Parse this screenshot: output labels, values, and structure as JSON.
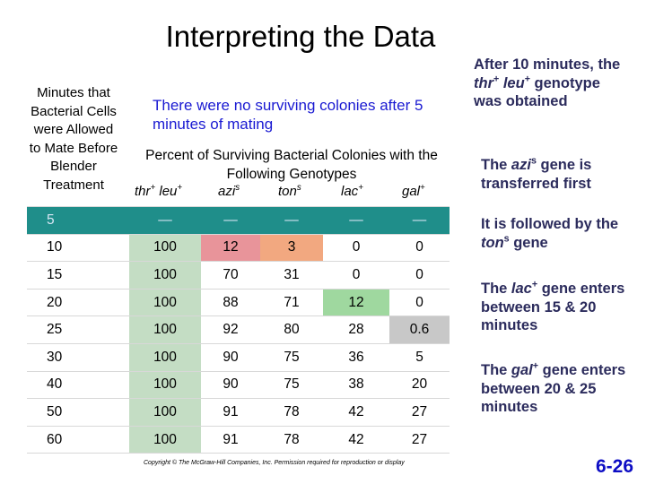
{
  "title": "Interpreting the Data",
  "row_header": "Minutes that Bacterial Cells were Allowed to Mate Before Blender Treatment",
  "no_survivors": "There were no surviving colonies after 5 minutes of mating",
  "pct_heading": "Percent of Surviving Bacterial Colonies with the Following Genotypes",
  "genotype_headers": [
    {
      "base": "thr",
      "sup1": "+",
      "base2": " leu",
      "sup2": "+"
    },
    {
      "base": "azi",
      "sup1": "s",
      "base2": "",
      "sup2": ""
    },
    {
      "base": "ton",
      "sup1": "s",
      "base2": "",
      "sup2": ""
    },
    {
      "base": "lac",
      "sup1": "+",
      "base2": "",
      "sup2": ""
    },
    {
      "base": "gal",
      "sup1": "+",
      "base2": "",
      "sup2": ""
    }
  ],
  "rows": [
    [
      "5",
      "—",
      "—",
      "—",
      "—",
      "—"
    ],
    [
      "10",
      "100",
      "12",
      "3",
      "0",
      "0"
    ],
    [
      "15",
      "100",
      "70",
      "31",
      "0",
      "0"
    ],
    [
      "20",
      "100",
      "88",
      "71",
      "12",
      "0"
    ],
    [
      "25",
      "100",
      "92",
      "80",
      "28",
      "0.6"
    ],
    [
      "30",
      "100",
      "90",
      "75",
      "36",
      "5"
    ],
    [
      "40",
      "100",
      "90",
      "75",
      "38",
      "20"
    ],
    [
      "50",
      "100",
      "91",
      "78",
      "42",
      "27"
    ],
    [
      "60",
      "100",
      "91",
      "78",
      "42",
      "27"
    ]
  ],
  "highlights": [
    {
      "row": 1,
      "col": 2,
      "color": "#e8949a"
    },
    {
      "row": 1,
      "col": 3,
      "color": "#f2a880"
    },
    {
      "row": 3,
      "col": 4,
      "color": "#9fd89f"
    },
    {
      "row": 4,
      "col": 5,
      "color": "#c8c8c8"
    }
  ],
  "notes": {
    "n0": {
      "pre": "After 10 minutes, the ",
      "g1": "thr",
      "s1": "+",
      "g2": " leu",
      "s2": "+",
      "post": " genotype was obtained"
    },
    "n1": {
      "pre": "The ",
      "g1": "azi",
      "s1": "s",
      "post": " gene is transferred first"
    },
    "n2": {
      "pre": "It is followed by the ",
      "g1": "ton",
      "s1": "s",
      "post": " gene"
    },
    "n3": {
      "pre": "The ",
      "g1": "lac",
      "s1": "+",
      "post": " gene enters between 15 & 20 minutes"
    },
    "n4": {
      "pre": "The ",
      "g1": "gal",
      "s1": "+",
      "post": " gene enters between 20 & 25 minutes"
    }
  },
  "copyright": "Copyright © The McGraw-Hill Companies, Inc. Permission required for reproduction or display",
  "page_number": "6-26",
  "colors": {
    "first_row_bg": "#1f8e8a",
    "first_col_bg": "#c4ddc4",
    "note_text": "#2b2b5c",
    "blue_text": "#1a1ad2"
  }
}
